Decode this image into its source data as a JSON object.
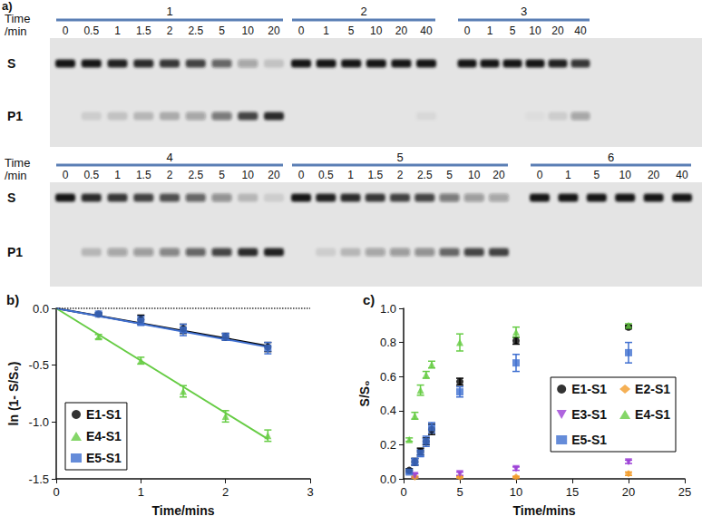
{
  "gel": {
    "panel": "a)",
    "time_label": "Time /min",
    "bands": [
      "S",
      "P1"
    ],
    "rows": [
      [
        {
          "label": "1",
          "times": [
            0,
            0.5,
            1,
            1.5,
            2,
            2.5,
            5,
            10,
            20
          ],
          "band_intensity": {
            "S": [
              1,
              1,
              0.95,
              0.9,
              0.85,
              0.8,
              0.6,
              0.3,
              0.15
            ],
            "P1": [
              0,
              0.1,
              0.15,
              0.2,
              0.25,
              0.3,
              0.5,
              0.75,
              0.9
            ]
          }
        },
        {
          "label": "2",
          "times": [
            0,
            1,
            5,
            10,
            20,
            40
          ],
          "band_intensity": {
            "S": [
              1,
              1,
              1,
              1,
              1,
              1
            ],
            "P1": [
              0,
              0,
              0,
              0,
              0,
              0.05
            ]
          }
        },
        {
          "label": "3",
          "times": [
            0,
            1,
            5,
            10,
            20,
            40
          ],
          "band_intensity": {
            "S": [
              1,
              1,
              1,
              1,
              0.95,
              0.85
            ],
            "P1": [
              0,
              0,
              0,
              0.03,
              0.1,
              0.3
            ]
          }
        }
      ],
      [
        {
          "label": "4",
          "times": [
            0,
            0.5,
            1,
            1.5,
            2,
            2.5,
            5,
            10,
            20
          ],
          "band_intensity": {
            "S": [
              1,
              0.9,
              0.85,
              0.8,
              0.7,
              0.6,
              0.4,
              0.2,
              0.1
            ],
            "P1": [
              0,
              0.2,
              0.3,
              0.35,
              0.45,
              0.6,
              0.75,
              0.9,
              0.95
            ]
          }
        },
        {
          "label": "5",
          "times": [
            0,
            0.5,
            1,
            1.5,
            2,
            2.5,
            5,
            10,
            20
          ],
          "band_intensity": {
            "S": [
              1,
              0.95,
              0.9,
              0.85,
              0.8,
              0.75,
              0.5,
              0.35,
              0.3
            ],
            "P1": [
              0,
              0.1,
              0.2,
              0.3,
              0.35,
              0.4,
              0.6,
              0.75,
              0.8
            ]
          }
        },
        {
          "label": "6",
          "times": [
            0,
            1,
            5,
            10,
            20,
            40
          ],
          "band_intensity": {
            "S": [
              1,
              1,
              1,
              1,
              1,
              1
            ],
            "P1": [
              0,
              0,
              0,
              0,
              0,
              0
            ]
          }
        }
      ]
    ]
  },
  "chart_data": [
    {
      "panel": "b)",
      "type": "scatter",
      "x_label": "Time/mins",
      "y_label": "ln (1- S/S₀)",
      "xlim": [
        0,
        3
      ],
      "xticks": [
        0,
        1,
        2,
        3
      ],
      "ylim": [
        -1.5,
        0
      ],
      "yticks": [
        -1.5,
        {
          "value": -1,
          "label": "-1.0"
        },
        -0.5,
        {
          "value": 0,
          "label": "0.0"
        }
      ],
      "legend": "lower left",
      "series": [
        {
          "name": "E1-S1",
          "color": "#000000",
          "marker": "circle",
          "x": [
            0.5,
            1,
            1.5,
            2,
            2.5
          ],
          "values": [
            -0.05,
            -0.1,
            -0.18,
            -0.25,
            -0.34
          ],
          "errors": [
            0.01,
            0.04,
            0.04,
            0.03,
            0.04
          ],
          "fit": {
            "x": [
              0,
              2.5
            ],
            "y": [
              0,
              -0.33
            ]
          }
        },
        {
          "name": "E4-S1",
          "color": "#66cc44",
          "marker": "triangle",
          "x": [
            0.5,
            1,
            1.5,
            2,
            2.5
          ],
          "values": [
            -0.25,
            -0.46,
            -0.73,
            -0.95,
            -1.12
          ],
          "errors": [
            0.02,
            0.03,
            0.05,
            0.05,
            0.05
          ],
          "fit": {
            "x": [
              0,
              2.5
            ],
            "y": [
              0,
              -1.15
            ]
          }
        },
        {
          "name": "E5-S1",
          "color": "#3f6fd0",
          "marker": "square",
          "x": [
            0.5,
            1,
            1.5,
            2,
            2.5
          ],
          "values": [
            -0.05,
            -0.11,
            -0.19,
            -0.25,
            -0.35
          ],
          "errors": [
            0.01,
            0.04,
            0.05,
            0.03,
            0.05
          ],
          "fit": {
            "x": [
              0,
              2.5
            ],
            "y": [
              0,
              -0.34
            ]
          }
        }
      ]
    },
    {
      "panel": "c)",
      "type": "scatter",
      "x_label": "Time/mins",
      "y_label": "S/S₀",
      "xlim": [
        0,
        25
      ],
      "xticks": [
        0,
        5,
        10,
        15,
        20,
        25
      ],
      "ylim": [
        0,
        1
      ],
      "yticks": [
        {
          "value": 0,
          "label": "0.0"
        },
        0.2,
        0.4,
        0.6,
        0.8,
        {
          "value": 1,
          "label": "1.0"
        }
      ],
      "legend": "lower right",
      "series": [
        {
          "name": "E1-S1",
          "color": "#000000",
          "marker": "circle",
          "x": [
            0.5,
            1,
            1.5,
            2,
            2.5,
            5,
            10,
            20
          ],
          "values": [
            0.05,
            0.1,
            0.16,
            0.22,
            0.29,
            0.57,
            0.81,
            0.89
          ],
          "errors": [
            0.01,
            0.02,
            0.02,
            0.02,
            0.03,
            0.02,
            0.02,
            0.01
          ]
        },
        {
          "name": "E2-S1",
          "color": "#f39c2b",
          "marker": "diamond",
          "x": [
            1,
            5,
            10,
            20
          ],
          "values": [
            0.01,
            0.01,
            0.01,
            0.03
          ],
          "errors": [
            0.005,
            0.005,
            0.005,
            0.01
          ]
        },
        {
          "name": "E3-S1",
          "color": "#9b3fd6",
          "marker": "triangle-down",
          "x": [
            1,
            5,
            10,
            20
          ],
          "values": [
            0.02,
            0.03,
            0.06,
            0.1
          ],
          "errors": [
            0.01,
            0.01,
            0.01,
            0.01
          ]
        },
        {
          "name": "E4-S1",
          "color": "#66cc44",
          "marker": "triangle",
          "x": [
            0.5,
            1,
            1.5,
            2,
            2.5,
            5,
            10,
            20
          ],
          "values": [
            0.23,
            0.37,
            0.52,
            0.61,
            0.67,
            0.8,
            0.86,
            0.9
          ],
          "errors": [
            0.01,
            0.02,
            0.03,
            0.02,
            0.02,
            0.05,
            0.03,
            0.01
          ]
        },
        {
          "name": "E5-S1",
          "color": "#3f6fd0",
          "marker": "square",
          "x": [
            0.5,
            1,
            1.5,
            2,
            2.5,
            5,
            10,
            20
          ],
          "values": [
            0.04,
            0.1,
            0.15,
            0.22,
            0.3,
            0.51,
            0.68,
            0.74
          ],
          "errors": [
            0.01,
            0.02,
            0.02,
            0.03,
            0.03,
            0.03,
            0.05,
            0.06
          ]
        }
      ]
    }
  ]
}
